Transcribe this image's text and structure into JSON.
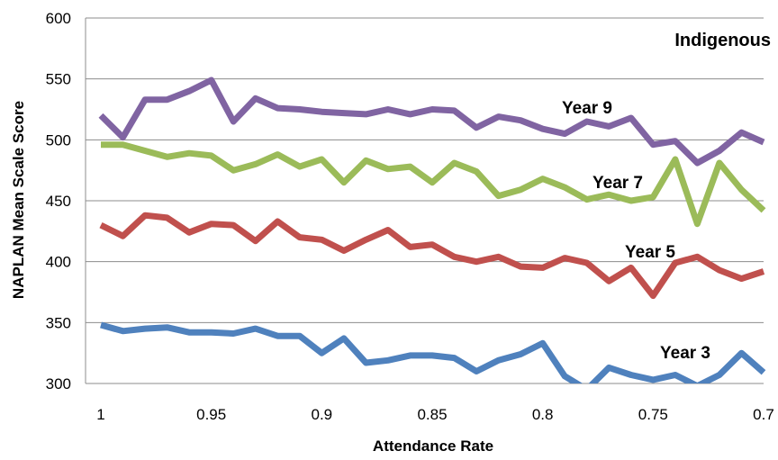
{
  "chart_data": {
    "type": "line",
    "title": "Indigenous",
    "xlabel": "Attendance Rate",
    "ylabel": "NAPLAN Mean Scale Score",
    "xlim": [
      1,
      0.7
    ],
    "ylim": [
      300,
      600
    ],
    "x_reversed": true,
    "x_ticks": [
      1,
      0.95,
      0.9,
      0.85,
      0.8,
      0.75,
      0.7
    ],
    "x_tick_labels": [
      "1",
      "0.95",
      "0.9",
      "0.85",
      "0.8",
      "0.75",
      "0.7"
    ],
    "y_ticks": [
      300,
      350,
      400,
      450,
      500,
      550,
      600
    ],
    "y_tick_labels": [
      "300",
      "350",
      "400",
      "450",
      "500",
      "550",
      "600"
    ],
    "grid": "horizontal",
    "legend": "none",
    "x": [
      1.0,
      0.99,
      0.98,
      0.97,
      0.96,
      0.95,
      0.94,
      0.93,
      0.92,
      0.91,
      0.9,
      0.89,
      0.88,
      0.87,
      0.86,
      0.85,
      0.84,
      0.83,
      0.82,
      0.81,
      0.8,
      0.79,
      0.78,
      0.77,
      0.76,
      0.75,
      0.74,
      0.73,
      0.72,
      0.71,
      0.7
    ],
    "series": [
      {
        "label": "Year 9",
        "color": "#8064a2",
        "values": [
          520,
          502,
          533,
          533,
          540,
          549,
          515,
          534,
          526,
          525,
          523,
          522,
          521,
          525,
          521,
          525,
          524,
          510,
          519,
          516,
          509,
          505,
          515,
          511,
          518,
          496,
          499,
          481,
          491,
          506,
          498
        ]
      },
      {
        "label": "Year 7",
        "color": "#9bbb59",
        "values": [
          496,
          496,
          491,
          486,
          489,
          487,
          475,
          480,
          488,
          478,
          484,
          465,
          483,
          476,
          478,
          465,
          481,
          474,
          454,
          459,
          468,
          461,
          451,
          455,
          450,
          453,
          484,
          431,
          481,
          459,
          442
        ]
      },
      {
        "label": "Year 5",
        "color": "#c0504d",
        "values": [
          430,
          421,
          438,
          436,
          424,
          431,
          430,
          417,
          433,
          420,
          418,
          409,
          418,
          426,
          412,
          414,
          404,
          400,
          404,
          396,
          395,
          403,
          399,
          384,
          395,
          372,
          399,
          404,
          393,
          386,
          392
        ]
      },
      {
        "label": "Year 3",
        "color": "#4f81bd",
        "values": [
          348,
          343,
          345,
          346,
          342,
          342,
          341,
          345,
          339,
          339,
          325,
          337,
          317,
          319,
          323,
          323,
          321,
          310,
          319,
          324,
          333,
          306,
          295,
          313,
          307,
          303,
          307,
          298,
          307,
          325,
          309
        ]
      }
    ]
  }
}
